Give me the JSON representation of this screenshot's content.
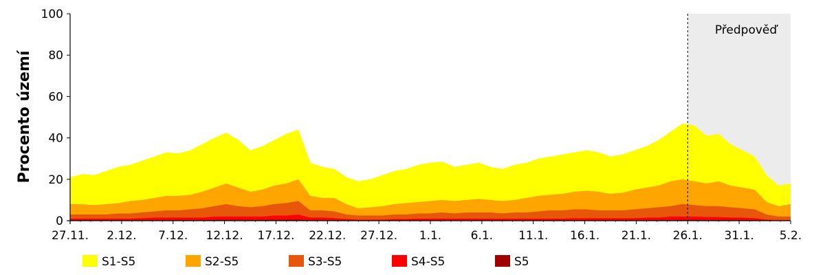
{
  "chart_data": {
    "type": "area",
    "title": "",
    "xlabel": "",
    "ylabel": "Procento území",
    "ylim": [
      0,
      100
    ],
    "yticks": [
      0,
      20,
      40,
      60,
      80,
      100
    ],
    "x_start": "27.11.",
    "x_step_days": 1,
    "xtick_labels": [
      "27.11.",
      "2.12.",
      "7.12.",
      "12.12.",
      "17.12.",
      "22.12.",
      "27.12.",
      "1.1.",
      "6.1.",
      "11.1.",
      "16.1.",
      "21.1.",
      "26.1.",
      "31.1.",
      "5.2."
    ],
    "forecast": {
      "label": "Předpověď",
      "from_day": 60,
      "to_day": 70,
      "shade_color": "#ececec"
    },
    "stacking": "cumulative",
    "legend_position": "bottom",
    "grid": false,
    "series": [
      {
        "name": "S1-S5",
        "color": "#ffff00",
        "values": [
          21,
          22.5,
          22,
          24,
          26,
          27,
          29,
          31,
          33,
          32.5,
          34,
          37,
          40,
          42.5,
          39,
          34,
          36,
          39,
          42,
          44,
          28,
          26,
          25,
          21,
          19,
          20,
          22,
          24,
          25,
          27,
          28,
          28.5,
          26,
          27,
          28,
          26,
          25,
          27,
          28,
          30,
          31,
          32,
          33,
          34,
          33,
          31,
          32,
          34,
          36,
          39,
          43,
          47,
          46,
          41,
          42,
          37,
          34,
          31,
          22,
          17,
          18
        ]
      },
      {
        "name": "S2-S5",
        "color": "#ffa500",
        "values": [
          8,
          8,
          7.5,
          8,
          8.5,
          9.5,
          10,
          11,
          12,
          12,
          12.5,
          14,
          16,
          18,
          16,
          14,
          15,
          17,
          18,
          20,
          12,
          11,
          11,
          8,
          6,
          6.5,
          7,
          8,
          8.5,
          9,
          9.5,
          10,
          9.5,
          10,
          10.5,
          10,
          9.5,
          10,
          11,
          12,
          12.5,
          13,
          14,
          14.5,
          14,
          13,
          13.5,
          15,
          16,
          17,
          19,
          20,
          19,
          18,
          19,
          17,
          16,
          15,
          9,
          7,
          8
        ]
      },
      {
        "name": "S3-S5",
        "color": "#e8560a",
        "values": [
          3,
          3,
          3,
          3,
          3.5,
          3.5,
          4,
          4.5,
          5,
          5,
          5.5,
          6,
          7,
          8,
          7,
          6.5,
          7,
          8,
          8.5,
          9.5,
          5,
          5,
          4.5,
          3,
          2.5,
          2.5,
          2.5,
          3,
          3,
          3.5,
          3.5,
          4,
          3.5,
          4,
          4,
          4,
          3.5,
          4,
          4,
          4.5,
          5,
          5,
          5.5,
          5.5,
          5,
          5,
          5,
          5.5,
          6,
          6.5,
          7,
          8,
          7.5,
          7,
          7,
          6.5,
          6,
          5.5,
          3,
          2,
          2
        ]
      },
      {
        "name": "S4-S5",
        "color": "#ff0000",
        "values": [
          1,
          1,
          1,
          1,
          1,
          1,
          1.2,
          1.5,
          1.5,
          1.5,
          1.5,
          1.5,
          2,
          2,
          2,
          2,
          2,
          2.5,
          2.5,
          3,
          1.5,
          1.5,
          1.2,
          0.8,
          0.5,
          0.5,
          0.5,
          0.8,
          0.8,
          1,
          1,
          1,
          1,
          1,
          1,
          1,
          1,
          1,
          1,
          1,
          1,
          1,
          1.2,
          1.2,
          1.2,
          1.2,
          1.2,
          1.2,
          1.5,
          1.5,
          2,
          2,
          2,
          1.8,
          1.8,
          1.5,
          1.5,
          1.2,
          0.5,
          0.3,
          0.3
        ]
      },
      {
        "name": "S5",
        "color": "#a00000",
        "values": [
          0.3,
          0.3,
          0.3,
          0.3,
          0.3,
          0.3,
          0.3,
          0.3,
          0.3,
          0.3,
          0.3,
          0.3,
          0.4,
          0.4,
          0.4,
          0.4,
          0.4,
          0.5,
          0.5,
          0.5,
          0.3,
          0.3,
          0.3,
          0.2,
          0.1,
          0.1,
          0.1,
          0.1,
          0.1,
          0.2,
          0.2,
          0.2,
          0.2,
          0.2,
          0.2,
          0.2,
          0.2,
          0.2,
          0.2,
          0.2,
          0.2,
          0.2,
          0.2,
          0.2,
          0.2,
          0.2,
          0.2,
          0.2,
          0.3,
          0.3,
          0.3,
          0.4,
          0.4,
          0.3,
          0.3,
          0.3,
          0.3,
          0.2,
          0.1,
          0.1,
          0.1
        ]
      }
    ]
  }
}
